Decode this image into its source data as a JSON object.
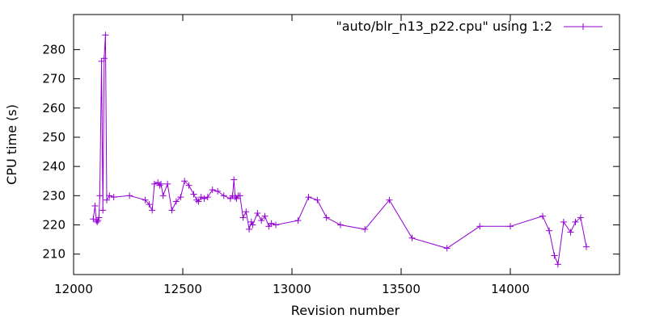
{
  "colors": {
    "series": "#9400d3",
    "frame": "#000000",
    "background": "#ffffff"
  },
  "chart_data": {
    "type": "line",
    "title": "",
    "xlabel": "Revision number",
    "ylabel": "CPU time (s)",
    "xlim": [
      12000,
      14500
    ],
    "ylim": [
      203,
      292
    ],
    "xticks": [
      12000,
      12500,
      13000,
      13500,
      14000
    ],
    "yticks": [
      210,
      220,
      230,
      240,
      250,
      260,
      270,
      280
    ],
    "grid": false,
    "legend": {
      "placement": "top-right"
    },
    "series": [
      {
        "name": "\"auto/blr_n13_p22.cpu\" using 1:2",
        "marker": "plus",
        "x": [
          12090,
          12098,
          12104,
          12108,
          12112,
          12116,
          12120,
          12128,
          12134,
          12140,
          12146,
          12152,
          12164,
          12184,
          12256,
          12328,
          12346,
          12360,
          12370,
          12386,
          12394,
          12400,
          12410,
          12430,
          12450,
          12470,
          12490,
          12508,
          12528,
          12550,
          12564,
          12572,
          12584,
          12598,
          12614,
          12636,
          12660,
          12688,
          12718,
          12728,
          12734,
          12740,
          12746,
          12754,
          12762,
          12776,
          12790,
          12804,
          12814,
          12820,
          12842,
          12860,
          12876,
          12894,
          12906,
          12926,
          13028,
          13076,
          13116,
          13158,
          13222,
          13334,
          13446,
          13550,
          13710,
          13860,
          14000,
          14148,
          14178,
          14202,
          14218,
          14244,
          14276,
          14298,
          14322,
          14348
        ],
        "y": [
          222.0,
          226.5,
          221.5,
          221.0,
          221.5,
          222.5,
          230.0,
          276.0,
          225.0,
          277.0,
          285.0,
          228.5,
          230.0,
          229.5,
          230.0,
          228.5,
          227.0,
          225.0,
          234.0,
          234.5,
          233.5,
          234.0,
          230.0,
          234.0,
          225.0,
          228.0,
          229.5,
          235.0,
          233.5,
          230.5,
          228.5,
          228.0,
          229.5,
          229.0,
          229.5,
          232.0,
          231.5,
          230.0,
          229.0,
          230.0,
          235.5,
          229.5,
          229.0,
          230.0,
          230.0,
          222.5,
          224.5,
          218.5,
          221.0,
          220.0,
          224.0,
          221.5,
          223.0,
          219.5,
          220.5,
          220.0,
          221.5,
          229.5,
          228.5,
          222.5,
          220.0,
          218.5,
          228.5,
          215.5,
          212.0,
          219.5,
          219.5,
          223.0,
          218.0,
          209.5,
          206.5,
          221.0,
          217.5,
          221.0,
          222.5,
          212.5
        ]
      }
    ]
  }
}
